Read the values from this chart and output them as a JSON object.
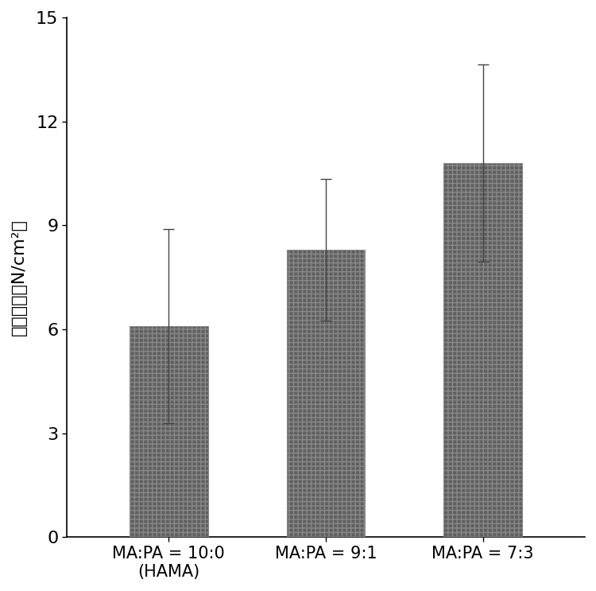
{
  "categories": [
    "MA:PA = 10:0\n(HAMA)",
    "MA:PA = 9:1",
    "MA:PA = 7:3"
  ],
  "values": [
    6.1,
    8.3,
    10.8
  ],
  "errors": [
    2.8,
    2.05,
    2.85
  ],
  "bar_color": "#606060",
  "bar_hatch_color": "#888888",
  "bar_width": 0.5,
  "ylabel": "拉伸强度（N/cm²）",
  "ylim": [
    0,
    15
  ],
  "yticks": [
    0,
    3,
    6,
    9,
    12,
    15
  ],
  "background_color": "#ffffff",
  "tick_fontsize": 16,
  "label_fontsize": 16,
  "xtick_fontsize": 15,
  "figsize": [
    7.5,
    7.43
  ],
  "dpi": 100
}
